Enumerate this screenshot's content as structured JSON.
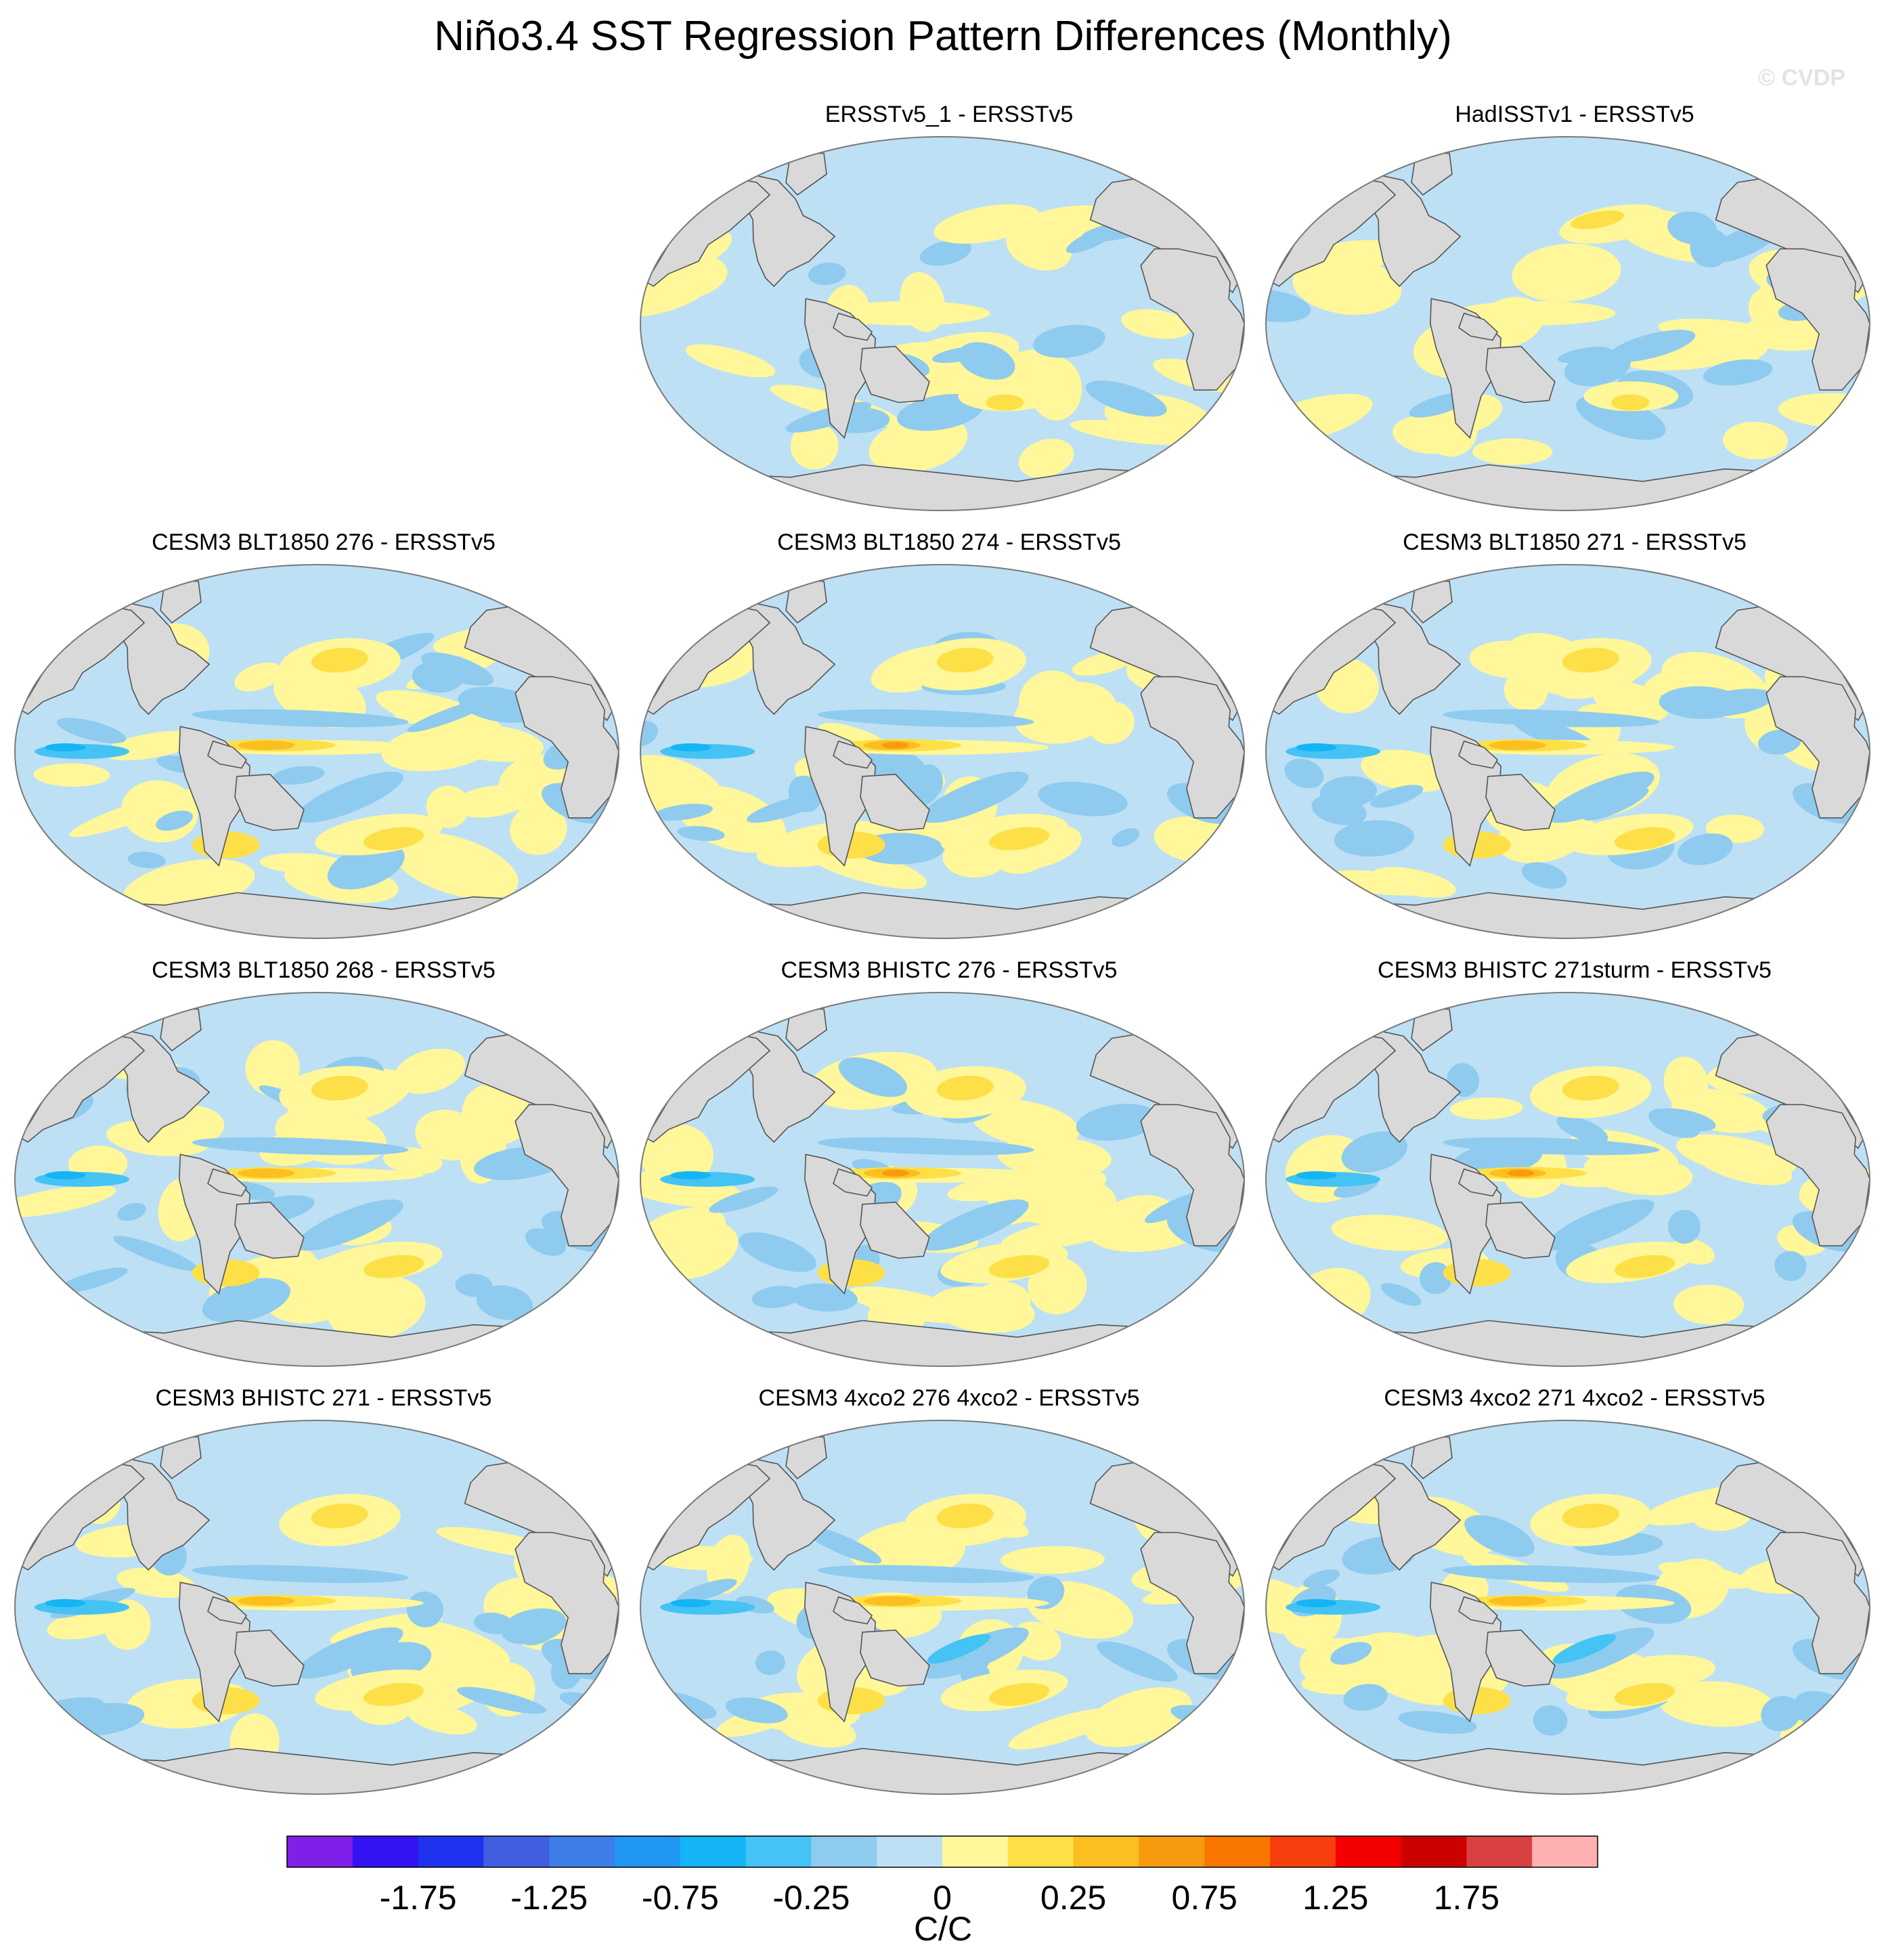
{
  "title": "Niño3.4 SST Regression Pattern Differences (Monthly)",
  "watermark": "© CVDP",
  "colors": {
    "land": "#d9d9d9",
    "coast": "#555555",
    "border": "#7a7a7a",
    "levels": [
      "#7f1fe8",
      "#3414f5",
      "#1f32ee",
      "#3f5fe0",
      "#3d7ee8",
      "#2197f4",
      "#14b4f5",
      "#44c3f4",
      "#8fcbee",
      "#bde0f5",
      "#fff799",
      "#fde047",
      "#fbbf1f",
      "#f89a10",
      "#f87600",
      "#f73f0e",
      "#f40000",
      "#cd0000",
      "#d94040",
      "#ffb0b0"
    ]
  },
  "colorbar": {
    "labels": [
      "-1.75",
      "-1.25",
      "-0.75",
      "-0.25",
      "0",
      "0.25",
      "0.75",
      "1.25",
      "1.75"
    ],
    "unit": "C/C"
  },
  "panels": [
    {
      "title": "ERSSTv5_1 - ERSSTv5",
      "variant": 1
    },
    {
      "title": "HadISSTv1 - ERSSTv5",
      "variant": 2
    },
    {
      "title": "CESM3 BLT1850 276 - ERSSTv5",
      "variant": 3
    },
    {
      "title": "CESM3 BLT1850 274 - ERSSTv5",
      "variant": 4
    },
    {
      "title": "CESM3 BLT1850 271 - ERSSTv5",
      "variant": 5
    },
    {
      "title": "CESM3 BLT1850 268 - ERSSTv5",
      "variant": 6
    },
    {
      "title": "CESM3 BHISTC 276 - ERSSTv5",
      "variant": 7
    },
    {
      "title": "CESM3 BHISTC 271sturm - ERSSTv5",
      "variant": 8
    },
    {
      "title": "CESM3 BHISTC 271 - ERSSTv5",
      "variant": 9
    },
    {
      "title": "CESM3 4xco2 276 4xco2 - ERSSTv5",
      "variant": 10
    },
    {
      "title": "CESM3 4xco2 271 4xco2 - ERSSTv5",
      "variant": 11
    }
  ]
}
